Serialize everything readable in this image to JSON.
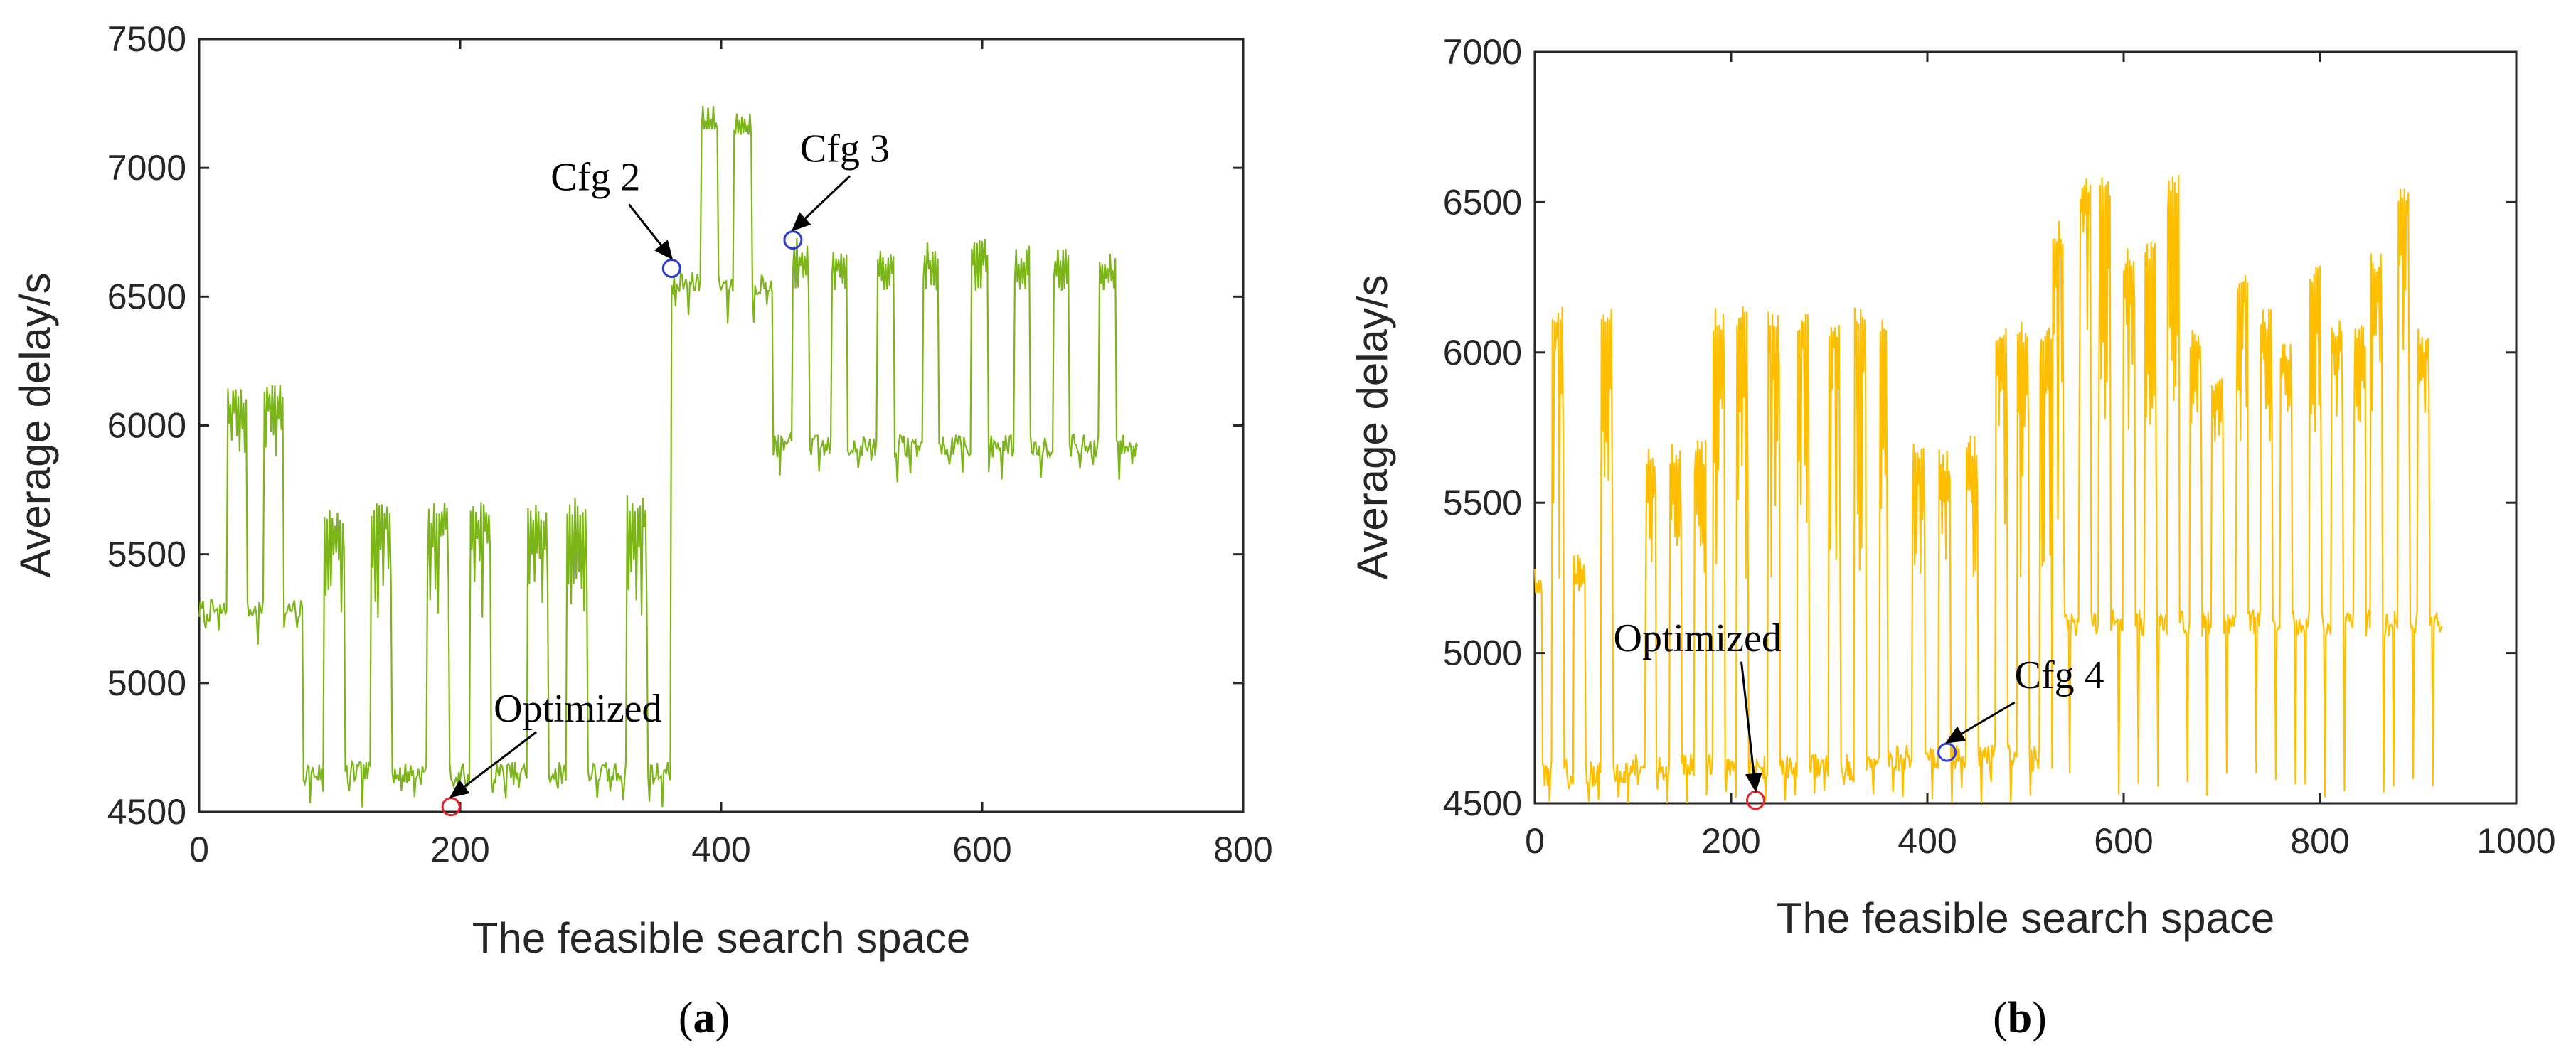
{
  "colors": {
    "series_a": "#7CB518",
    "series_b": "#FFBF00",
    "optimized_marker": "#E8202A",
    "cfg_marker": "#2A3BE0",
    "axis": "#262626"
  },
  "chart_data": [
    {
      "panel": "a",
      "type": "line",
      "xlabel": "The feasible search space",
      "ylabel": "Average delay/s",
      "xlim": [
        0,
        800
      ],
      "ylim": [
        4500,
        7500
      ],
      "xticks": [
        "0",
        "200",
        "400",
        "600",
        "800"
      ],
      "yticks": [
        "4500",
        "5000",
        "5500",
        "6000",
        "6500",
        "7000",
        "7500"
      ],
      "series": [
        {
          "name": "delay",
          "n": 720,
          "segments": [
            {
              "start": 0,
              "end": 80,
              "base": 5280,
              "dip": 5180,
              "bursts": [
                [
                  22,
                  37,
                  6150
                ],
                [
                  50,
                  65,
                  6170
                ]
              ]
            },
            {
              "start": 80,
              "end": 362,
              "base": 4650,
              "dip": 4560,
              "bursts": [
                [
                  96,
                  112,
                  5680
                ],
                [
                  132,
                  148,
                  5700
                ],
                [
                  175,
                  192,
                  5700
                ],
                [
                  208,
                  224,
                  5710
                ],
                [
                  252,
                  268,
                  5700
                ],
                [
                  282,
                  298,
                  5720
                ],
                [
                  328,
                  344,
                  5730
                ]
              ]
            },
            {
              "start": 362,
              "end": 440,
              "base": 6550,
              "dip": 6430,
              "bursts": [
                [
                  385,
                  398,
                  7250
                ],
                [
                  410,
                  424,
                  7220
                ]
              ]
            },
            {
              "start": 440,
              "end": 720,
              "base": 5920,
              "dip": 5820,
              "bursts": [
                [
                  455,
                  468,
                  6730
                ],
                [
                  485,
                  497,
                  6700
                ],
                [
                  520,
                  533,
                  6700
                ],
                [
                  555,
                  567,
                  6720
                ],
                [
                  592,
                  605,
                  6740
                ],
                [
                  625,
                  637,
                  6700
                ],
                [
                  655,
                  667,
                  6690
                ],
                [
                  690,
                  703,
                  6680
                ]
              ]
            }
          ]
        }
      ],
      "annotations": [
        {
          "label": "Cfg 2",
          "x": 362,
          "y": 6610,
          "marker": "cfg"
        },
        {
          "label": "Cfg 3",
          "x": 455,
          "y": 6720,
          "marker": "cfg"
        },
        {
          "label": "Optimized",
          "x": 193,
          "y": 4520,
          "marker": "optimized"
        }
      ]
    },
    {
      "panel": "b",
      "type": "line",
      "xlabel": "The feasible search space",
      "ylabel": "Average delay/s",
      "xlim": [
        0,
        1000
      ],
      "ylim": [
        4500,
        7000
      ],
      "xticks": [
        "0",
        "200",
        "400",
        "600",
        "800",
        "1000"
      ],
      "yticks": [
        "4500",
        "5000",
        "5500",
        "6000",
        "6500",
        "7000"
      ],
      "series": [
        {
          "name": "delay",
          "n": 925,
          "segments": [
            {
              "start": 0,
              "end": 100,
              "base": 4600,
              "dip": 4530,
              "bursts": [
                [
                  0,
                  8,
                  5300
                ],
                [
                  18,
                  30,
                  6170
                ],
                [
                  40,
                  52,
                  5330
                ],
                [
                  68,
                  80,
                  6160
                ]
              ]
            },
            {
              "start": 100,
              "end": 360,
              "base": 4620,
              "dip": 4530,
              "bursts": [
                [
                  113,
                  124,
                  5700
                ],
                [
                  138,
                  150,
                  5700
                ],
                [
                  163,
                  175,
                  5710
                ],
                [
                  182,
                  194,
                  6150
                ],
                [
                  206,
                  218,
                  6160
                ],
                [
                  238,
                  250,
                  6150
                ],
                [
                  268,
                  280,
                  6140
                ],
                [
                  300,
                  312,
                  6130
                ],
                [
                  326,
                  338,
                  6150
                ],
                [
                  352,
                  364,
                  6150
                ]
              ]
            },
            {
              "start": 360,
              "end": 540,
              "base": 4650,
              "dip": 4530,
              "bursts": [
                [
                  385,
                  398,
                  5720
                ],
                [
                  412,
                  424,
                  5680
                ],
                [
                  440,
                  452,
                  5730
                ],
                [
                  470,
                  482,
                  6120
                ],
                [
                  492,
                  504,
                  6110
                ],
                [
                  515,
                  527,
                  6100
                ],
                [
                  528,
                  540,
                  6440
                ]
              ]
            },
            {
              "start": 540,
              "end": 925,
              "base": 5100,
              "dip": 4560,
              "bursts": [
                [
                  555,
                  567,
                  6580
                ],
                [
                  575,
                  587,
                  6590
                ],
                [
                  600,
                  612,
                  6350
                ],
                [
                  622,
                  634,
                  6370
                ],
                [
                  645,
                  657,
                  6600
                ],
                [
                  668,
                  680,
                  6080
                ],
                [
                  690,
                  702,
                  5920
                ],
                [
                  715,
                  727,
                  6280
                ],
                [
                  740,
                  752,
                  6150
                ],
                [
                  760,
                  772,
                  6050
                ],
                [
                  790,
                  802,
                  6290
                ],
                [
                  812,
                  824,
                  6120
                ],
                [
                  835,
                  847,
                  6100
                ],
                [
                  852,
                  864,
                  6330
                ],
                [
                  880,
                  892,
                  6580
                ],
                [
                  900,
                  912,
                  6080
                ]
              ]
            }
          ]
        }
      ],
      "annotations": [
        {
          "label": "Optimized",
          "x": 225,
          "y": 4510,
          "marker": "optimized"
        },
        {
          "label": "Cfg 4",
          "x": 420,
          "y": 4670,
          "marker": "cfg"
        }
      ]
    }
  ],
  "captions": {
    "a": {
      "open": "(",
      "letter": "a",
      "close": ")"
    },
    "b": {
      "open": "(",
      "letter": "b",
      "close": ")"
    }
  }
}
